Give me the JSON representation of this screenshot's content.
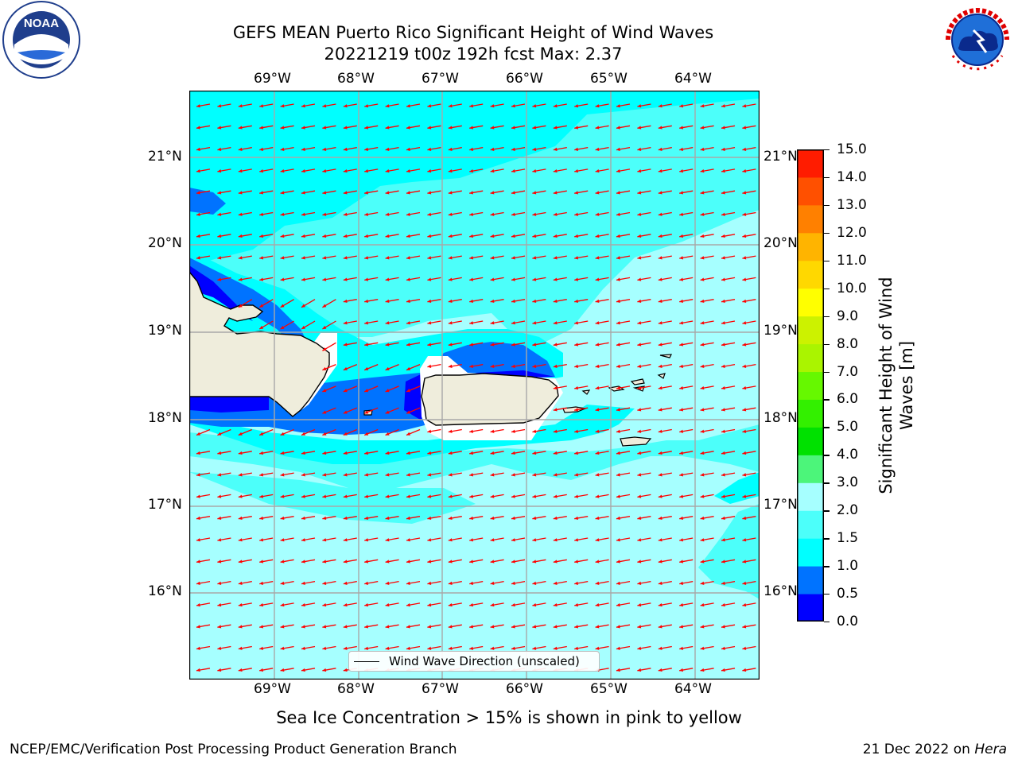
{
  "title": {
    "line1": "GEFS MEAN Puerto Rico Significant Height of Wind Waves",
    "line2": "20221219 t00z 192h fcst   Max: 2.37"
  },
  "map": {
    "lon_ticks": [
      "69°W",
      "68°W",
      "67°W",
      "66°W",
      "65°W",
      "64°W"
    ],
    "lat_ticks": [
      "21°N",
      "20°N",
      "19°N",
      "18°N",
      "17°N",
      "16°N"
    ],
    "land_color": "#efeddc",
    "arrow_color": "#ff0000",
    "prevailing_direction": "east-northeast to west-southwest (arrows point west)"
  },
  "legend": {
    "label": "Wind Wave Direction (unscaled)"
  },
  "colorbar": {
    "label": "Significant Height of Wind Waves [m]",
    "label_line1": "Significant Height of Wind",
    "label_line2": "Waves [m]",
    "ticks": [
      "15.0",
      "14.0",
      "13.0",
      "12.0",
      "11.0",
      "10.0",
      "9.0",
      "8.0",
      "7.0",
      "6.0",
      "5.0",
      "4.0",
      "3.0",
      "2.0",
      "1.5",
      "1.0",
      "0.5",
      "0.0"
    ],
    "colors": [
      "#0000ff",
      "#0073ff",
      "#00ffff",
      "#4cfffa",
      "#a6ffff",
      "#4cf57a",
      "#00e100",
      "#33f000",
      "#66f800",
      "#aaf400",
      "#ccf200",
      "#ffff00",
      "#ffd800",
      "#ffb400",
      "#ff8000",
      "#ff5000",
      "#ff1c00"
    ]
  },
  "note": "Sea Ice Concentration > 15% is shown in pink to yellow",
  "footer": {
    "left": "NCEP/EMC/Verification Post Processing Product Generation Branch",
    "date": "21 Dec 2022 on ",
    "machine": "Hera"
  },
  "logos": {
    "left": "NOAA",
    "right": "NATIONAL WEATHER SERVICE"
  }
}
